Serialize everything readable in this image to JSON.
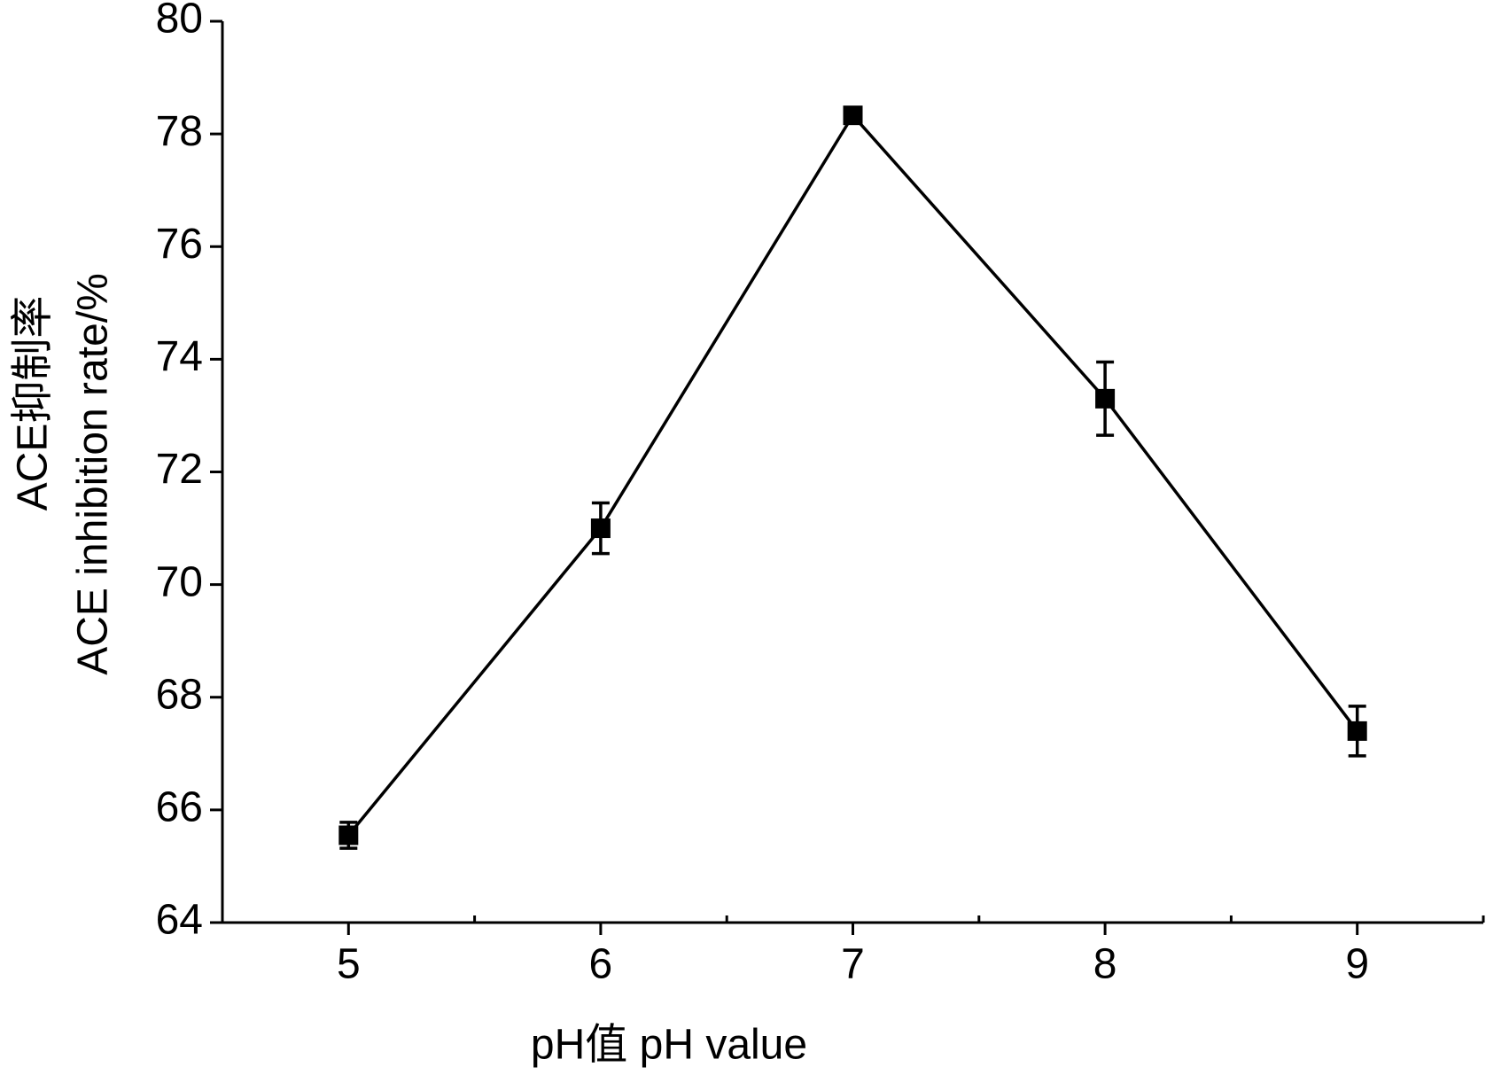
{
  "chart_data": {
    "type": "line",
    "xlabel": "pH值 pH value",
    "ylabel": [
      "ACE抑制率",
      "ACE inhibition rate/%"
    ],
    "x": [
      5,
      6,
      7,
      8,
      9
    ],
    "series": [
      {
        "color": "#000000",
        "values": [
          65.55,
          71.0,
          78.33,
          73.3,
          67.4
        ],
        "errors": [
          0.23,
          0.45,
          0.1,
          0.65,
          0.44
        ]
      }
    ],
    "xlim": [
      4.5,
      9.5
    ],
    "xticks": [
      5,
      6,
      7,
      8,
      9
    ],
    "xminorticks": [
      5.5,
      6.5,
      7.5,
      8.5,
      9.5
    ],
    "ylim": [
      64,
      80
    ],
    "yticks": [
      64,
      66,
      68,
      70,
      72,
      74,
      76,
      78,
      80
    ],
    "grid": false
  }
}
